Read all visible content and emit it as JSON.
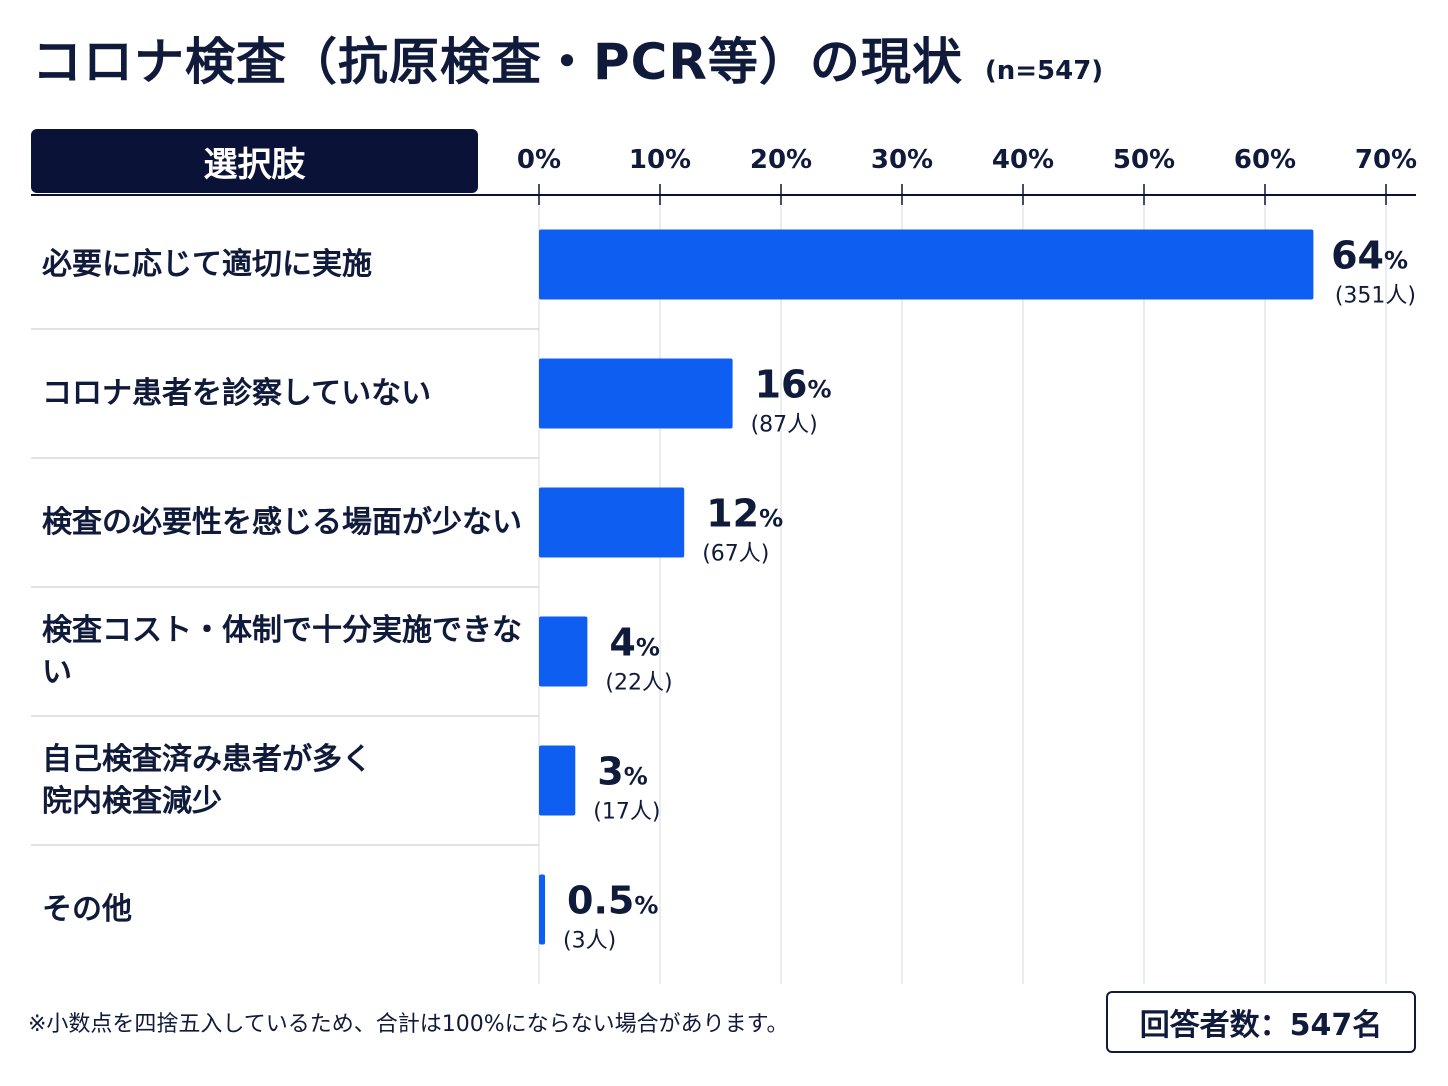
{
  "header": {
    "title": "コロナ検査（抗原検査・PCR等）の現状",
    "sample": "(n=547)",
    "column_header": "選択肢"
  },
  "chart_data": {
    "type": "bar",
    "orientation": "horizontal",
    "categories": [
      "必要に応じて適切に実施",
      "コロナ患者を診察していない",
      "検査の必要性を感じる場面が少ない",
      "検査コスト・体制で十分実施できない",
      "自己検査済み患者が多く\n院内検査減少",
      "その他"
    ],
    "values": [
      64,
      16,
      12,
      4,
      3,
      0.5
    ],
    "value_labels": [
      "64",
      "16",
      "12",
      "4",
      "3",
      "0.5"
    ],
    "value_unit": "%",
    "counts": [
      "(351人)",
      "(87人)",
      "(67人)",
      "(22人)",
      "(17人)",
      "(3人)"
    ],
    "xlim": [
      0,
      70
    ],
    "x_ticks": [
      "0%",
      "10%",
      "20%",
      "30%",
      "40%",
      "50%",
      "60%",
      "70%"
    ],
    "grid": true,
    "bar_color": "#0f5ef2"
  },
  "footer": {
    "note": "※小数点を四捨五入しているため、合計は100%にならない場合があります。",
    "total": "回答者数：547名"
  }
}
